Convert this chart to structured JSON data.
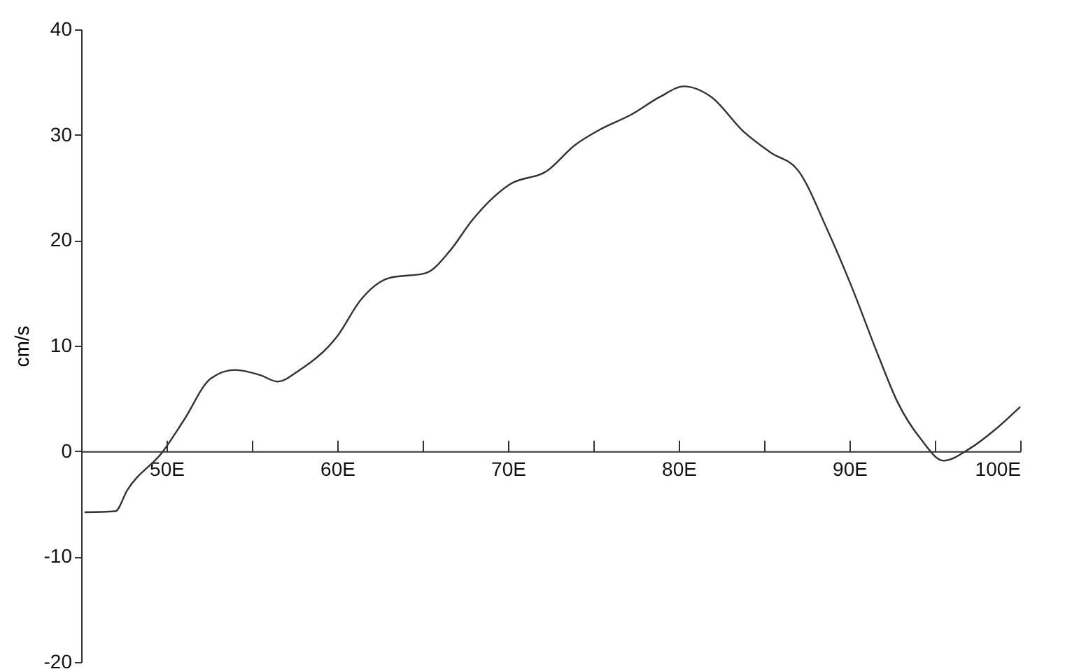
{
  "chart_data": {
    "type": "line",
    "ylabel": "cm/s",
    "x": [
      45.2,
      47,
      47.7,
      49.8,
      51,
      52.6,
      54,
      55.5,
      56.5,
      57.8,
      60,
      61.4,
      63,
      65.2,
      66.6,
      67.9,
      70.1,
      72.3,
      73.9,
      75.5,
      77.2,
      78.9,
      80.3,
      81.9,
      83.8,
      85.4,
      87,
      88.7,
      90.1,
      91.7,
      92.8,
      94.2,
      95.5,
      97.1,
      98.5,
      100
    ],
    "series": [
      {
        "color": "#333333",
        "values": [
          -5.8,
          -5.7,
          -3.7,
          0,
          2.9,
          6.9,
          7.7,
          7.2,
          6.6,
          7.7,
          10.9,
          14.4,
          16.4,
          16.9,
          19,
          21.9,
          25.3,
          26.6,
          29,
          30.6,
          31.9,
          33.6,
          34.6,
          33.6,
          30.3,
          28.3,
          26.6,
          21,
          15.7,
          9,
          4.7,
          1.1,
          -0.9,
          0.3,
          2,
          4.2
        ]
      }
    ],
    "xlim": [
      45,
      100
    ],
    "ylim": [
      -20,
      40
    ],
    "xticks": [
      {
        "value": 50,
        "label": "50E"
      },
      {
        "value": 55,
        "label": null
      },
      {
        "value": 60,
        "label": "60E"
      },
      {
        "value": 65,
        "label": null
      },
      {
        "value": 70,
        "label": "70E"
      },
      {
        "value": 75,
        "label": null
      },
      {
        "value": 80,
        "label": "80E"
      },
      {
        "value": 85,
        "label": null
      },
      {
        "value": 90,
        "label": "90E"
      },
      {
        "value": 95,
        "label": null
      },
      {
        "value": 100,
        "label": "100E"
      }
    ],
    "yticks": [
      -20,
      -10,
      0,
      10,
      20,
      30,
      40
    ],
    "grid": false,
    "marker": "none",
    "line_style": "solid"
  }
}
